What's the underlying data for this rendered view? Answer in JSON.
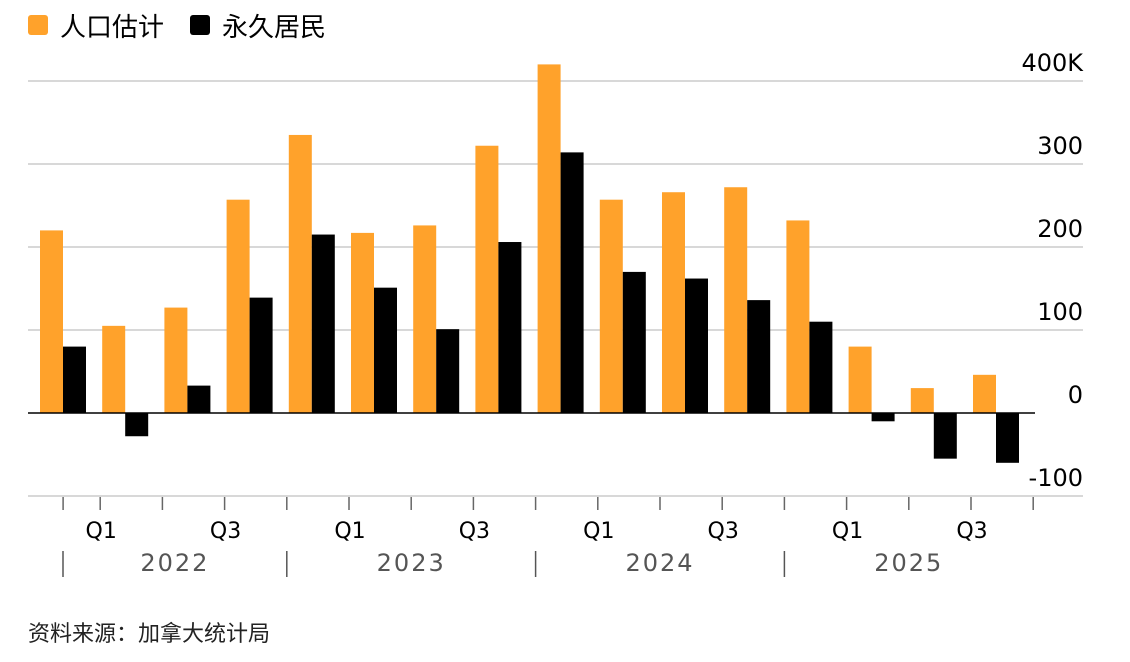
{
  "colors": {
    "series1": "#ffa22b",
    "series2": "#000000",
    "grid": "#cccccc",
    "axis_text": "#555555"
  },
  "source": "资料来源：加拿大统计局",
  "chart_data": {
    "type": "bar",
    "title": "",
    "xlabel": "",
    "ylabel": "",
    "legend_position": "top-left",
    "grid": true,
    "ylim": [
      -100,
      400
    ],
    "y_ticks": [
      {
        "value": 400,
        "label": "400K"
      },
      {
        "value": 300,
        "label": "300"
      },
      {
        "value": 200,
        "label": "200"
      },
      {
        "value": 100,
        "label": "100"
      },
      {
        "value": 0,
        "label": "0"
      },
      {
        "value": -100,
        "label": "-100"
      }
    ],
    "quarter_labels": [
      {
        "index": 1,
        "label": "Q1"
      },
      {
        "index": 3,
        "label": "Q3"
      },
      {
        "index": 5,
        "label": "Q1"
      },
      {
        "index": 7,
        "label": "Q3"
      },
      {
        "index": 9,
        "label": "Q1"
      },
      {
        "index": 11,
        "label": "Q3"
      },
      {
        "index": 13,
        "label": "Q1"
      },
      {
        "index": 15,
        "label": "Q3"
      }
    ],
    "year_labels": [
      {
        "start": 0,
        "end": 4,
        "label": "2022"
      },
      {
        "start": 4,
        "end": 8,
        "label": "2023"
      },
      {
        "start": 8,
        "end": 12,
        "label": "2024"
      },
      {
        "start": 12,
        "end": 16,
        "label": "2025"
      }
    ],
    "series": [
      {
        "name": "人口估计",
        "values": [
          220,
          105,
          127,
          257,
          335,
          217,
          226,
          322,
          420,
          257,
          266,
          272,
          232,
          80,
          30,
          46
        ]
      },
      {
        "name": "永久居民",
        "values": [
          80,
          -28,
          33,
          139,
          215,
          151,
          101,
          206,
          314,
          170,
          162,
          136,
          110,
          -10,
          -55,
          -60
        ]
      }
    ]
  }
}
